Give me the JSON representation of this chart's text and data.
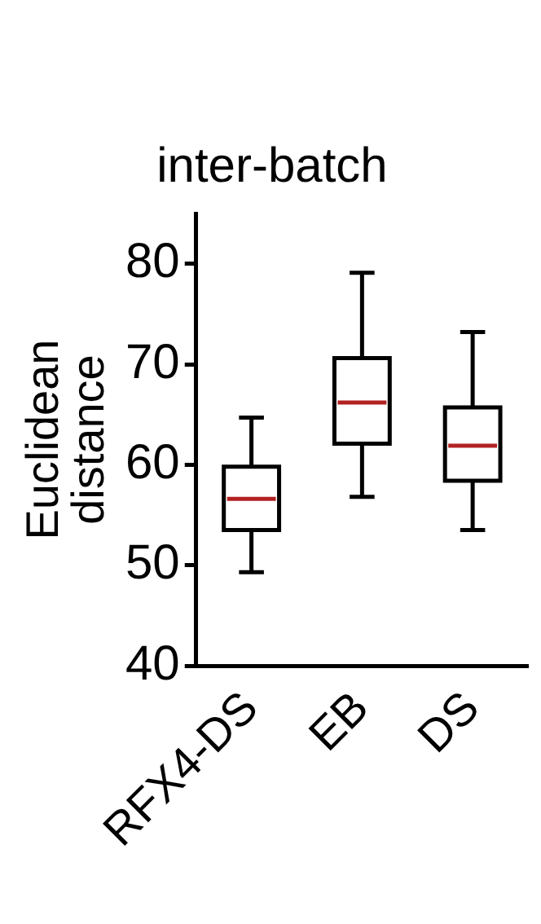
{
  "chart_data": {
    "type": "box",
    "title": "inter-batch",
    "ylabel": "Euclidean distance",
    "categories": [
      "RFX4-DS",
      "EB",
      "DS"
    ],
    "boxes": [
      {
        "low": 49.3,
        "q1": 53.5,
        "median": 56.6,
        "q3": 59.8,
        "high": 64.7
      },
      {
        "low": 56.8,
        "q1": 62.1,
        "median": 66.2,
        "q3": 70.6,
        "high": 79.1
      },
      {
        "low": 53.5,
        "q1": 58.4,
        "median": 61.9,
        "q3": 65.7,
        "high": 73.2
      }
    ],
    "ylim": [
      40,
      85
    ],
    "yticks": [
      40,
      50,
      60,
      70,
      80
    ],
    "grid": false,
    "legend": false
  }
}
